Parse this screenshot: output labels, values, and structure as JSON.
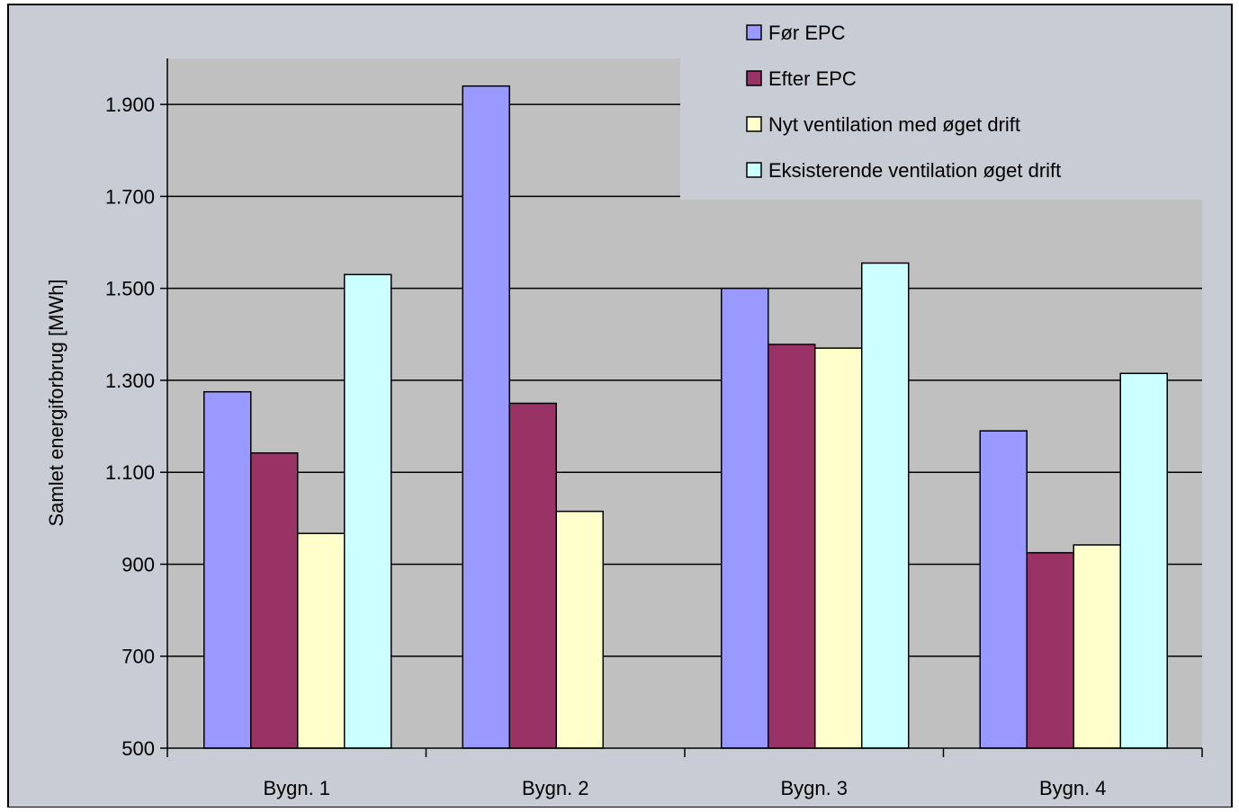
{
  "chart_data": {
    "type": "bar",
    "title": "",
    "xlabel": "",
    "ylabel": "Samlet energiforbrug  [MWh]",
    "ylim": [
      500,
      2000
    ],
    "yticks": [
      500,
      700,
      900,
      1100,
      1300,
      1500,
      1700,
      1900
    ],
    "ytick_labels": [
      "500",
      "700",
      "900",
      "1.100",
      "1.300",
      "1.500",
      "1.700",
      "1.900"
    ],
    "categories": [
      "Bygn. 1",
      "Bygn. 2",
      "Bygn. 3",
      "Bygn. 4"
    ],
    "series": [
      {
        "name": "Før EPC",
        "color": "#9999ff",
        "values": [
          1275,
          1940,
          1500,
          1190
        ]
      },
      {
        "name": "Efter EPC",
        "color": "#993366",
        "values": [
          1142,
          1250,
          1378,
          925
        ]
      },
      {
        "name": "Nyt ventilation med øget drift",
        "color": "#ffffcc",
        "values": [
          967,
          1015,
          1370,
          942
        ]
      },
      {
        "name": "Eksisterende ventilation øget drift",
        "color": "#ccffff",
        "values": [
          1530,
          null,
          1555,
          1315
        ]
      }
    ],
    "grid": true,
    "legend_position": "top-right",
    "plot_background": "#c0c0c0",
    "bar_outline": "#000000"
  }
}
